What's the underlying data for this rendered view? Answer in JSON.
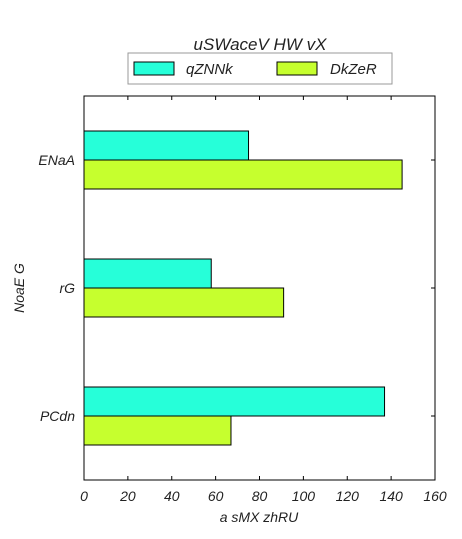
{
  "chart_data": {
    "type": "bar",
    "orientation": "horizontal",
    "title": "uSWaceV HW vX",
    "xlabel": "a sMX zhRU",
    "ylabel": "NoaE G",
    "categories": [
      "ENaA",
      "rG",
      "PCdn"
    ],
    "series": [
      {
        "name": "qZNNk",
        "values": [
          75,
          58,
          137
        ],
        "color": "#26ffd9"
      },
      {
        "name": "DkZeR",
        "values": [
          145,
          91,
          67
        ],
        "color": "#c6ff2e"
      }
    ],
    "xlim": [
      0,
      160
    ],
    "xticks": [
      0,
      20,
      40,
      60,
      80,
      100,
      120,
      140,
      160
    ],
    "grid": false,
    "legend_position": "top-center"
  }
}
